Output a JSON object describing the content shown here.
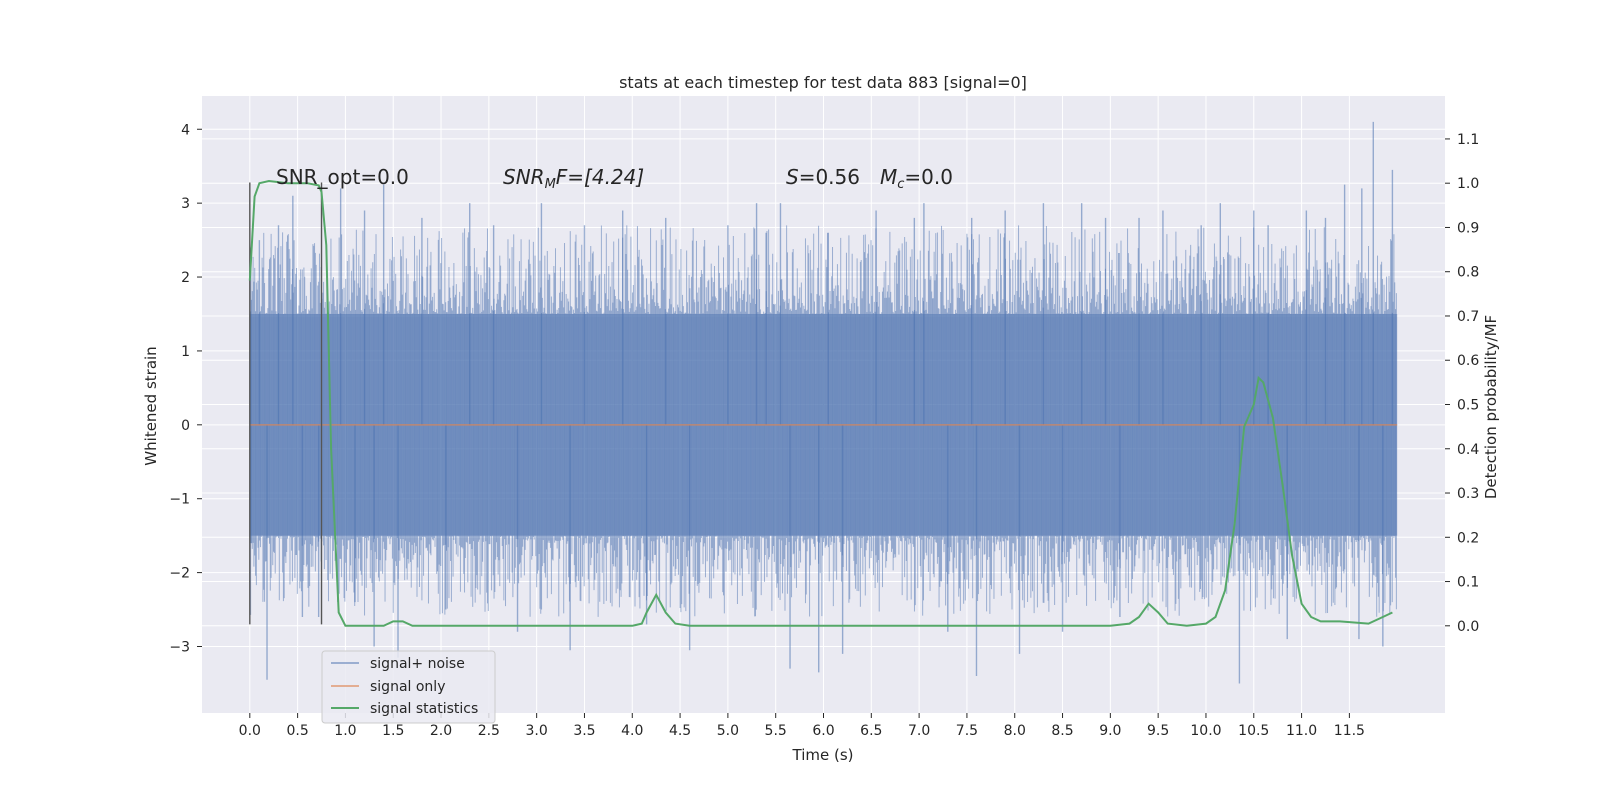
{
  "chart_data": {
    "type": "line",
    "title": "stats at each timestep for test data 883 [signal=0]",
    "xlabel": "Time (s)",
    "ylabel": "Whitened strain",
    "y2label": "Detection probability/MF",
    "xlim": [
      -0.5,
      12.5
    ],
    "ylim": [
      -3.9,
      4.45
    ],
    "y2lim": [
      -0.197,
      1.197
    ],
    "x_ticks": [
      "0.0",
      "0.5",
      "1.0",
      "1.5",
      "2.0",
      "2.5",
      "3.0",
      "3.5",
      "4.0",
      "4.5",
      "5.0",
      "5.5",
      "6.0",
      "6.5",
      "7.0",
      "7.5",
      "8.0",
      "8.5",
      "9.0",
      "9.5",
      "10.0",
      "10.5",
      "11.0",
      "11.5"
    ],
    "y_ticks": [
      "4",
      "3",
      "2",
      "1",
      "0",
      "−1",
      "−2",
      "−3"
    ],
    "y2_ticks": [
      "1.1",
      "1.0",
      "0.9",
      "0.8",
      "0.7",
      "0.6",
      "0.5",
      "0.4",
      "0.3",
      "0.2",
      "0.1",
      "0.0"
    ],
    "grid": true,
    "legend_position": "lower-left",
    "annotations": {
      "snr_opt": "SNR_opt=0.0",
      "snr_mf_label": "SNR",
      "snr_mf_sub": "M",
      "snr_mf_tail": "F=[4.24]",
      "s_label": "S",
      "s_value": "=0.56",
      "mc_label": "M",
      "mc_sub": "c",
      "mc_value": "=0.0"
    },
    "window_markers": [
      0.0,
      0.75
    ],
    "series": [
      {
        "name": "signal+ noise",
        "color": "#4c72b0",
        "kind": "noise",
        "x_range": [
          0.0,
          12.0
        ],
        "core_envelope": [
          -1.5,
          1.5
        ],
        "spikes": [
          [
            0.01,
            2.4
          ],
          [
            0.01,
            -1.6
          ],
          [
            0.1,
            2.5
          ],
          [
            0.18,
            -3.45
          ],
          [
            0.3,
            2.7
          ],
          [
            0.45,
            3.1
          ],
          [
            0.55,
            -2.6
          ],
          [
            0.72,
            -2.6
          ],
          [
            0.95,
            3.2
          ],
          [
            1.1,
            -2.4
          ],
          [
            1.2,
            2.9
          ],
          [
            1.3,
            -3.0
          ],
          [
            1.4,
            3.25
          ],
          [
            1.55,
            -3.15
          ],
          [
            1.8,
            2.8
          ],
          [
            2.05,
            -2.5
          ],
          [
            2.3,
            3.0
          ],
          [
            2.55,
            2.7
          ],
          [
            2.8,
            -2.8
          ],
          [
            3.05,
            3.0
          ],
          [
            3.35,
            -3.05
          ],
          [
            3.5,
            2.7
          ],
          [
            3.9,
            2.9
          ],
          [
            4.15,
            -2.7
          ],
          [
            4.35,
            2.8
          ],
          [
            4.6,
            -3.05
          ],
          [
            5.0,
            2.7
          ],
          [
            5.3,
            3.0
          ],
          [
            5.4,
            2.6
          ],
          [
            5.55,
            3.0
          ],
          [
            5.65,
            -3.3
          ],
          [
            5.95,
            -3.35
          ],
          [
            6.05,
            2.6
          ],
          [
            6.2,
            -3.1
          ],
          [
            6.55,
            2.9
          ],
          [
            6.95,
            2.8
          ],
          [
            7.05,
            3.0
          ],
          [
            7.3,
            -2.8
          ],
          [
            7.55,
            2.8
          ],
          [
            7.6,
            -3.4
          ],
          [
            7.9,
            2.9
          ],
          [
            8.05,
            -3.1
          ],
          [
            8.3,
            3.0
          ],
          [
            8.5,
            -2.8
          ],
          [
            8.7,
            3.0
          ],
          [
            8.95,
            2.8
          ],
          [
            9.1,
            -2.6
          ],
          [
            9.3,
            2.8
          ],
          [
            9.55,
            2.9
          ],
          [
            9.95,
            2.7
          ],
          [
            10.15,
            3.0
          ],
          [
            10.35,
            -3.5
          ],
          [
            10.5,
            2.9
          ],
          [
            10.65,
            2.7
          ],
          [
            10.85,
            -2.9
          ],
          [
            11.05,
            2.9
          ],
          [
            11.25,
            2.8
          ],
          [
            11.45,
            3.25
          ],
          [
            11.6,
            -2.9
          ],
          [
            11.63,
            3.2
          ],
          [
            11.75,
            4.1
          ],
          [
            11.85,
            -3.0
          ],
          [
            11.95,
            3.45
          ]
        ]
      },
      {
        "name": "signal only",
        "color": "#dd8452",
        "kind": "flat",
        "x": [
          0.0,
          12.0
        ],
        "y": [
          0.0,
          0.0
        ]
      },
      {
        "name": "signal statistics",
        "color": "#55a868",
        "kind": "line",
        "axis": "right",
        "x": [
          0.0,
          0.05,
          0.1,
          0.2,
          0.4,
          0.6,
          0.72,
          0.75,
          0.8,
          0.85,
          0.93,
          1.0,
          1.2,
          1.4,
          1.5,
          1.6,
          1.7,
          1.8,
          2.0,
          2.5,
          3.0,
          3.5,
          4.0,
          4.1,
          4.15,
          4.25,
          4.35,
          4.45,
          4.6,
          5.0,
          5.5,
          6.0,
          6.5,
          7.0,
          7.4,
          7.6,
          8.0,
          8.5,
          9.0,
          9.2,
          9.3,
          9.4,
          9.5,
          9.6,
          9.8,
          10.0,
          10.1,
          10.2,
          10.3,
          10.4,
          10.5,
          10.55,
          10.6,
          10.7,
          10.8,
          10.9,
          11.0,
          11.1,
          11.2,
          11.4,
          11.7,
          11.85,
          11.95
        ],
        "y": [
          0.78,
          0.97,
          1.0,
          1.005,
          1.0,
          1.0,
          0.995,
          0.98,
          0.86,
          0.4,
          0.03,
          0.0,
          0.0,
          0.0,
          0.01,
          0.01,
          0.0,
          0.0,
          0.0,
          0.0,
          0.0,
          0.0,
          0.0,
          0.005,
          0.03,
          0.07,
          0.03,
          0.005,
          0.0,
          0.0,
          0.0,
          0.0,
          0.0,
          0.0,
          0.0,
          0.0,
          0.0,
          0.0,
          0.0,
          0.005,
          0.02,
          0.05,
          0.03,
          0.005,
          0.0,
          0.005,
          0.02,
          0.08,
          0.23,
          0.45,
          0.5,
          0.56,
          0.55,
          0.47,
          0.32,
          0.16,
          0.05,
          0.02,
          0.01,
          0.01,
          0.005,
          0.02,
          0.03
        ]
      }
    ]
  }
}
